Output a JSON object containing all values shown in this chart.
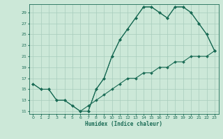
{
  "title": "",
  "xlabel": "Humidex (Indice chaleur)",
  "bg_color": "#cce8d8",
  "line_color": "#1a6b55",
  "grid_color": "#a8ccbc",
  "xlim": [
    -0.5,
    23.5
  ],
  "ylim": [
    10.5,
    30.5
  ],
  "yticks": [
    11,
    13,
    15,
    17,
    19,
    21,
    23,
    25,
    27,
    29
  ],
  "xticks": [
    0,
    1,
    2,
    3,
    4,
    5,
    6,
    7,
    8,
    9,
    10,
    11,
    12,
    13,
    14,
    15,
    16,
    17,
    18,
    19,
    20,
    21,
    22,
    23
  ],
  "line1_x": [
    0,
    1,
    2,
    3,
    4,
    5,
    6,
    7,
    8,
    9,
    10,
    11,
    12,
    13,
    14,
    15,
    16,
    17,
    18,
    19,
    20,
    21,
    22,
    23
  ],
  "line1_y": [
    16,
    15,
    15,
    13,
    13,
    12,
    11,
    11,
    15,
    17,
    21,
    24,
    26,
    28,
    30,
    30,
    29,
    28,
    30,
    30,
    29,
    27,
    25,
    22
  ],
  "line2_x": [
    0,
    1,
    2,
    3,
    4,
    5,
    6,
    7,
    8,
    9,
    10,
    11,
    12,
    13,
    14,
    15,
    16,
    17,
    18,
    19,
    20,
    21,
    22,
    23
  ],
  "line2_y": [
    16,
    15,
    15,
    13,
    13,
    12,
    11,
    12,
    13,
    14,
    15,
    16,
    17,
    17,
    18,
    18,
    19,
    19,
    20,
    20,
    21,
    21,
    21,
    22
  ],
  "line3_x": [
    7,
    8,
    9,
    10,
    11,
    12,
    13,
    14,
    15,
    16,
    17,
    18,
    19,
    20,
    21,
    22,
    23
  ],
  "line3_y": [
    11,
    15,
    17,
    21,
    24,
    26,
    28,
    30,
    30,
    29,
    28,
    30,
    30,
    29,
    27,
    25,
    22
  ]
}
